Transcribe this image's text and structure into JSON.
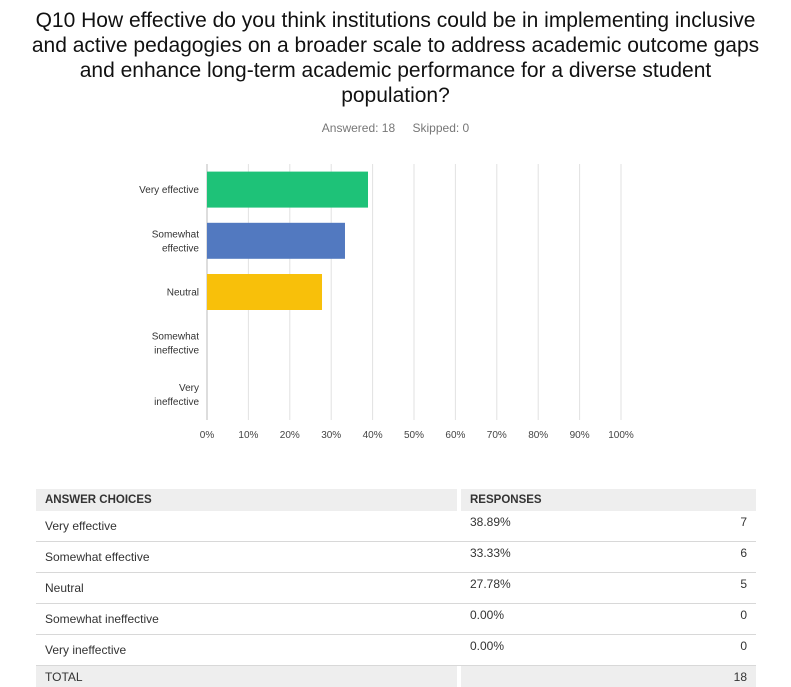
{
  "question": "Q10 How effective do you think institutions could be in implementing inclusive and active pedagogies on a broader scale to address academic outcome gaps and enhance long-term academic performance for a diverse student population?",
  "meta": {
    "answered": "Answered: 18",
    "skipped": "Skipped: 0"
  },
  "chart_data": {
    "type": "bar",
    "orientation": "horizontal",
    "categories": [
      [
        "Very effective"
      ],
      [
        "Somewhat",
        "effective"
      ],
      [
        "Neutral"
      ],
      [
        "Somewhat",
        "ineffective"
      ],
      [
        "Very",
        "ineffective"
      ]
    ],
    "values": [
      38.89,
      33.33,
      27.78,
      0,
      0
    ],
    "colors": [
      "#1ec278",
      "#5279c0",
      "#f8c00a",
      "#f08a2a",
      "#9b59b6"
    ],
    "xlim": [
      0,
      100
    ],
    "ticks": [
      "0%",
      "10%",
      "20%",
      "30%",
      "40%",
      "50%",
      "60%",
      "70%",
      "80%",
      "90%",
      "100%"
    ],
    "grid": true
  },
  "table": {
    "headers": {
      "choice": "ANSWER CHOICES",
      "responses": "RESPONSES"
    },
    "rows": [
      {
        "choice": "Very effective",
        "pct": "38.89%",
        "count": "7"
      },
      {
        "choice": "Somewhat effective",
        "pct": "33.33%",
        "count": "6"
      },
      {
        "choice": "Neutral",
        "pct": "27.78%",
        "count": "5"
      },
      {
        "choice": "Somewhat ineffective",
        "pct": "0.00%",
        "count": "0"
      },
      {
        "choice": "Very ineffective",
        "pct": "0.00%",
        "count": "0"
      }
    ],
    "total": {
      "label": "TOTAL",
      "count": "18"
    }
  }
}
